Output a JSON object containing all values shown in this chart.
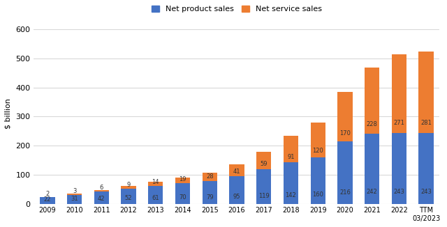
{
  "categories": [
    "2009",
    "2010",
    "2011",
    "2012",
    "2013",
    "2014",
    "2015",
    "2016",
    "2017",
    "2018",
    "2019",
    "2020",
    "2021",
    "2022",
    "TTM\n03/2023"
  ],
  "net_product_sales": [
    22,
    31,
    42,
    52,
    61,
    70,
    79,
    95,
    119,
    142,
    160,
    216,
    242,
    243,
    243
  ],
  "net_service_sales": [
    2,
    3,
    6,
    9,
    14,
    19,
    28,
    41,
    59,
    91,
    120,
    170,
    228,
    271,
    281
  ],
  "product_color": "#4472c4",
  "service_color": "#ed7d31",
  "ylabel": "$ billion",
  "ylim": [
    0,
    620
  ],
  "yticks": [
    0,
    100,
    200,
    300,
    400,
    500,
    600
  ],
  "legend_product": "Net product sales",
  "legend_service": "Net service sales",
  "background_color": "#ffffff",
  "grid_color": "#d9d9d9",
  "label_fontsize": 6.0,
  "label_color": "#333333"
}
